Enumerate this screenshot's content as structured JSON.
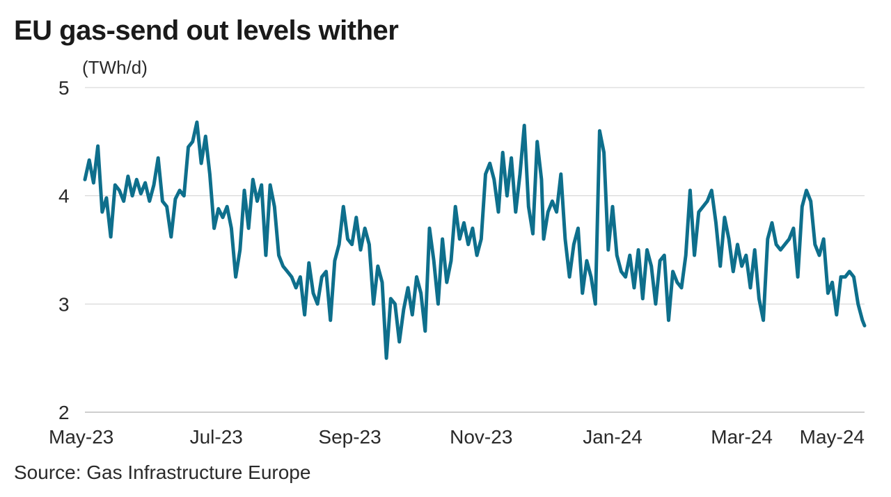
{
  "header": {
    "title": "EU gas-send out levels wither"
  },
  "footer": {
    "source": "Source: Gas Infrastructure Europe"
  },
  "colors": {
    "line": "#0e6f8c",
    "grid": "#d0d0d0",
    "axis": "#bdbdbd"
  },
  "chart_data": {
    "type": "line",
    "title": "EU gas-send out levels wither",
    "unit_label": "(TWh/d)",
    "xlabel": "",
    "ylabel": "",
    "ylim": [
      2,
      5
    ],
    "yticks": [
      2,
      3,
      4,
      5
    ],
    "grid": true,
    "xtick_labels": [
      "May-23",
      "Jul-23",
      "Sep-23",
      "Nov-23",
      "Jan-24",
      "Mar-24",
      "May-24"
    ],
    "series": [
      {
        "points": [
          [
            "2023-05-01",
            4.15
          ],
          [
            "2023-05-03",
            4.33
          ],
          [
            "2023-05-05",
            4.12
          ],
          [
            "2023-05-07",
            4.46
          ],
          [
            "2023-05-09",
            3.85
          ],
          [
            "2023-05-11",
            3.98
          ],
          [
            "2023-05-13",
            3.62
          ],
          [
            "2023-05-15",
            4.1
          ],
          [
            "2023-05-17",
            4.05
          ],
          [
            "2023-05-19",
            3.95
          ],
          [
            "2023-05-21",
            4.18
          ],
          [
            "2023-05-23",
            4.0
          ],
          [
            "2023-05-25",
            4.15
          ],
          [
            "2023-05-27",
            4.02
          ],
          [
            "2023-05-29",
            4.12
          ],
          [
            "2023-05-31",
            3.95
          ],
          [
            "2023-06-02",
            4.1
          ],
          [
            "2023-06-04",
            4.35
          ],
          [
            "2023-06-06",
            3.95
          ],
          [
            "2023-06-08",
            3.9
          ],
          [
            "2023-06-10",
            3.62
          ],
          [
            "2023-06-12",
            3.97
          ],
          [
            "2023-06-14",
            4.05
          ],
          [
            "2023-06-16",
            4.0
          ],
          [
            "2023-06-18",
            4.45
          ],
          [
            "2023-06-20",
            4.5
          ],
          [
            "2023-06-22",
            4.68
          ],
          [
            "2023-06-24",
            4.3
          ],
          [
            "2023-06-26",
            4.55
          ],
          [
            "2023-06-28",
            4.2
          ],
          [
            "2023-06-30",
            3.7
          ],
          [
            "2023-07-02",
            3.88
          ],
          [
            "2023-07-04",
            3.8
          ],
          [
            "2023-07-06",
            3.9
          ],
          [
            "2023-07-08",
            3.7
          ],
          [
            "2023-07-10",
            3.25
          ],
          [
            "2023-07-12",
            3.5
          ],
          [
            "2023-07-14",
            4.05
          ],
          [
            "2023-07-16",
            3.7
          ],
          [
            "2023-07-18",
            4.15
          ],
          [
            "2023-07-20",
            3.95
          ],
          [
            "2023-07-22",
            4.1
          ],
          [
            "2023-07-24",
            3.45
          ],
          [
            "2023-07-26",
            4.1
          ],
          [
            "2023-07-28",
            3.9
          ],
          [
            "2023-07-30",
            3.45
          ],
          [
            "2023-08-01",
            3.35
          ],
          [
            "2023-08-03",
            3.3
          ],
          [
            "2023-08-05",
            3.25
          ],
          [
            "2023-08-07",
            3.15
          ],
          [
            "2023-08-09",
            3.25
          ],
          [
            "2023-08-11",
            2.9
          ],
          [
            "2023-08-13",
            3.38
          ],
          [
            "2023-08-15",
            3.1
          ],
          [
            "2023-08-17",
            3.0
          ],
          [
            "2023-08-19",
            3.25
          ],
          [
            "2023-08-21",
            3.3
          ],
          [
            "2023-08-23",
            2.85
          ],
          [
            "2023-08-25",
            3.4
          ],
          [
            "2023-08-27",
            3.55
          ],
          [
            "2023-08-29",
            3.9
          ],
          [
            "2023-08-31",
            3.6
          ],
          [
            "2023-09-02",
            3.55
          ],
          [
            "2023-09-04",
            3.8
          ],
          [
            "2023-09-06",
            3.5
          ],
          [
            "2023-09-08",
            3.7
          ],
          [
            "2023-09-10",
            3.55
          ],
          [
            "2023-09-12",
            3.0
          ],
          [
            "2023-09-14",
            3.35
          ],
          [
            "2023-09-16",
            3.2
          ],
          [
            "2023-09-18",
            2.5
          ],
          [
            "2023-09-20",
            3.05
          ],
          [
            "2023-09-22",
            3.0
          ],
          [
            "2023-09-24",
            2.65
          ],
          [
            "2023-09-26",
            2.95
          ],
          [
            "2023-09-28",
            3.15
          ],
          [
            "2023-09-30",
            2.9
          ],
          [
            "2023-10-02",
            3.25
          ],
          [
            "2023-10-04",
            3.1
          ],
          [
            "2023-10-06",
            2.75
          ],
          [
            "2023-10-08",
            3.7
          ],
          [
            "2023-10-10",
            3.4
          ],
          [
            "2023-10-12",
            3.0
          ],
          [
            "2023-10-14",
            3.6
          ],
          [
            "2023-10-16",
            3.2
          ],
          [
            "2023-10-18",
            3.4
          ],
          [
            "2023-10-20",
            3.9
          ],
          [
            "2023-10-22",
            3.6
          ],
          [
            "2023-10-24",
            3.75
          ],
          [
            "2023-10-26",
            3.55
          ],
          [
            "2023-10-28",
            3.7
          ],
          [
            "2023-10-30",
            3.45
          ],
          [
            "2023-11-01",
            3.6
          ],
          [
            "2023-11-03",
            4.2
          ],
          [
            "2023-11-05",
            4.3
          ],
          [
            "2023-11-07",
            4.15
          ],
          [
            "2023-11-09",
            3.85
          ],
          [
            "2023-11-11",
            4.4
          ],
          [
            "2023-11-13",
            4.0
          ],
          [
            "2023-11-15",
            4.35
          ],
          [
            "2023-11-17",
            3.85
          ],
          [
            "2023-11-19",
            4.2
          ],
          [
            "2023-11-21",
            4.65
          ],
          [
            "2023-11-23",
            3.9
          ],
          [
            "2023-11-25",
            3.65
          ],
          [
            "2023-11-27",
            4.5
          ],
          [
            "2023-11-29",
            4.15
          ],
          [
            "2023-11-30",
            3.6
          ],
          [
            "2023-12-02",
            3.85
          ],
          [
            "2023-12-04",
            3.95
          ],
          [
            "2023-12-06",
            3.85
          ],
          [
            "2023-12-08",
            4.2
          ],
          [
            "2023-12-10",
            3.6
          ],
          [
            "2023-12-12",
            3.25
          ],
          [
            "2023-12-14",
            3.55
          ],
          [
            "2023-12-16",
            3.7
          ],
          [
            "2023-12-18",
            3.1
          ],
          [
            "2023-12-20",
            3.4
          ],
          [
            "2023-12-22",
            3.25
          ],
          [
            "2023-12-24",
            3.0
          ],
          [
            "2023-12-26",
            4.6
          ],
          [
            "2023-12-28",
            4.4
          ],
          [
            "2023-12-30",
            3.5
          ],
          [
            "2024-01-01",
            3.9
          ],
          [
            "2024-01-03",
            3.45
          ],
          [
            "2024-01-05",
            3.3
          ],
          [
            "2024-01-07",
            3.25
          ],
          [
            "2024-01-09",
            3.45
          ],
          [
            "2024-01-11",
            3.15
          ],
          [
            "2024-01-13",
            3.5
          ],
          [
            "2024-01-15",
            3.05
          ],
          [
            "2024-01-17",
            3.5
          ],
          [
            "2024-01-19",
            3.35
          ],
          [
            "2024-01-21",
            3.0
          ],
          [
            "2024-01-23",
            3.4
          ],
          [
            "2024-01-25",
            3.45
          ],
          [
            "2024-01-27",
            2.85
          ],
          [
            "2024-01-29",
            3.3
          ],
          [
            "2024-01-31",
            3.2
          ],
          [
            "2024-02-02",
            3.15
          ],
          [
            "2024-02-04",
            3.45
          ],
          [
            "2024-02-06",
            4.05
          ],
          [
            "2024-02-08",
            3.45
          ],
          [
            "2024-02-10",
            3.85
          ],
          [
            "2024-02-12",
            3.9
          ],
          [
            "2024-02-14",
            3.95
          ],
          [
            "2024-02-16",
            4.05
          ],
          [
            "2024-02-18",
            3.75
          ],
          [
            "2024-02-20",
            3.35
          ],
          [
            "2024-02-22",
            3.8
          ],
          [
            "2024-02-24",
            3.6
          ],
          [
            "2024-02-26",
            3.3
          ],
          [
            "2024-02-28",
            3.55
          ],
          [
            "2024-03-01",
            3.35
          ],
          [
            "2024-03-03",
            3.45
          ],
          [
            "2024-03-05",
            3.15
          ],
          [
            "2024-03-07",
            3.5
          ],
          [
            "2024-03-09",
            3.05
          ],
          [
            "2024-03-11",
            2.85
          ],
          [
            "2024-03-13",
            3.6
          ],
          [
            "2024-03-15",
            3.75
          ],
          [
            "2024-03-17",
            3.55
          ],
          [
            "2024-03-19",
            3.5
          ],
          [
            "2024-03-21",
            3.55
          ],
          [
            "2024-03-23",
            3.6
          ],
          [
            "2024-03-25",
            3.7
          ],
          [
            "2024-03-27",
            3.25
          ],
          [
            "2024-03-29",
            3.9
          ],
          [
            "2024-03-31",
            4.05
          ],
          [
            "2024-04-02",
            3.95
          ],
          [
            "2024-04-04",
            3.55
          ],
          [
            "2024-04-06",
            3.45
          ],
          [
            "2024-04-08",
            3.6
          ],
          [
            "2024-04-10",
            3.1
          ],
          [
            "2024-04-12",
            3.2
          ],
          [
            "2024-04-14",
            2.9
          ],
          [
            "2024-04-16",
            3.25
          ],
          [
            "2024-04-18",
            3.25
          ],
          [
            "2024-04-20",
            3.3
          ],
          [
            "2024-04-22",
            3.25
          ],
          [
            "2024-04-24",
            3.0
          ],
          [
            "2024-04-26",
            2.85
          ],
          [
            "2024-04-27",
            2.8
          ]
        ]
      }
    ]
  }
}
